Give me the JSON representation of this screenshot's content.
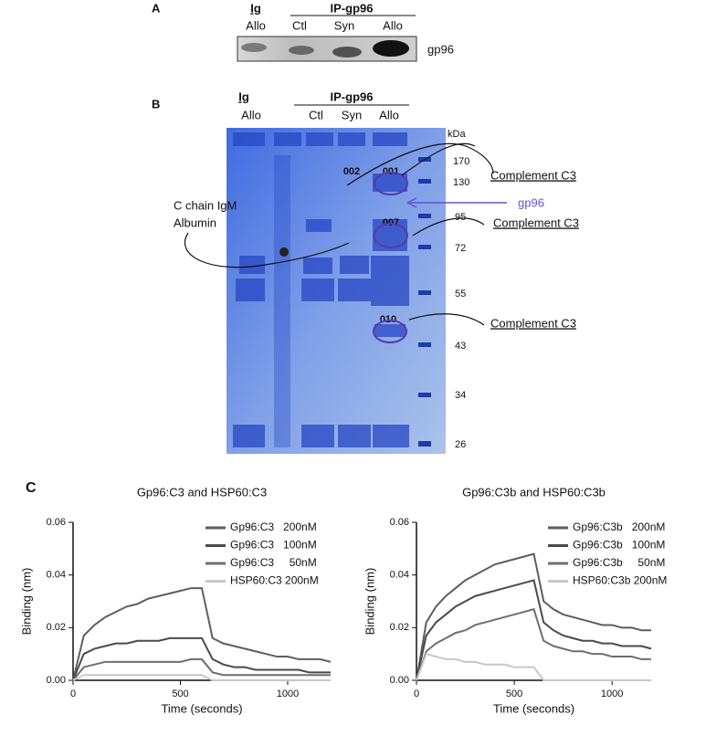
{
  "panel_a": {
    "label": "A",
    "ig": "Ig",
    "ip": "IP-gp96",
    "lanes": [
      "Allo",
      "Ctl",
      "Syn",
      "Allo"
    ],
    "band": "gp96"
  },
  "panel_b": {
    "label": "B",
    "ig": "Ig",
    "ip": "IP-gp96",
    "lanes": [
      "Allo",
      "Ctl",
      "Syn",
      "Allo"
    ],
    "unit": "kDa",
    "markers": [
      170,
      130,
      95,
      72,
      55,
      43,
      34,
      26
    ],
    "spots": [
      "002",
      "001",
      "007",
      "010"
    ],
    "annotations": [
      "Complement C3",
      "Complement C3",
      "Complement C3",
      "gp96",
      "C chain IgM",
      "Albumin"
    ]
  },
  "panel_c_label": "C",
  "chart_data": [
    {
      "type": "line",
      "title": "Gp96:C3 and HSP60:C3",
      "x_label": "Time (seconds)",
      "y_label": "Binding (nm)",
      "x": [
        0,
        50,
        100,
        150,
        200,
        250,
        300,
        350,
        400,
        450,
        500,
        550,
        600,
        650,
        700,
        750,
        800,
        850,
        900,
        950,
        1000,
        1050,
        1100,
        1150,
        1200
      ],
      "xlim": [
        0,
        1200
      ],
      "xticks": [
        0,
        500,
        1000
      ],
      "ylim": [
        0,
        0.06
      ],
      "yticks": [
        {
          "value": 0,
          "label": "0.00"
        },
        0.02,
        0.04,
        0.06
      ],
      "legend": "upper right",
      "series": [
        {
          "name": "Gp96:C3   200nM",
          "color": "#5e5e5e",
          "values": [
            0,
            0.017,
            0.021,
            0.024,
            0.026,
            0.028,
            0.029,
            0.031,
            0.032,
            0.033,
            0.034,
            0.035,
            0.035,
            0.016,
            0.014,
            0.013,
            0.012,
            0.011,
            0.01,
            0.009,
            0.009,
            0.008,
            0.008,
            0.008,
            0.007
          ]
        },
        {
          "name": "Gp96:C3   100nM",
          "color": "#4a4a4a",
          "values": [
            0,
            0.01,
            0.012,
            0.013,
            0.014,
            0.014,
            0.015,
            0.015,
            0.015,
            0.016,
            0.016,
            0.016,
            0.016,
            0.008,
            0.006,
            0.005,
            0.005,
            0.004,
            0.004,
            0.004,
            0.004,
            0.004,
            0.003,
            0.003,
            0.003
          ]
        },
        {
          "name": "Gp96:C3     50nM",
          "color": "#6e6e6e",
          "values": [
            0,
            0.005,
            0.006,
            0.007,
            0.007,
            0.007,
            0.007,
            0.007,
            0.007,
            0.007,
            0.007,
            0.008,
            0.008,
            0.003,
            0.002,
            0.002,
            0.002,
            0.002,
            0.002,
            0.002,
            0.002,
            0.002,
            0.002,
            0.002,
            0.002
          ]
        },
        {
          "name": "HSP60:C3 200nM",
          "color": "#c8c8c8",
          "values": [
            0,
            0.002,
            0.002,
            0.002,
            0.002,
            0.002,
            0.002,
            0.002,
            0.002,
            0.002,
            0.002,
            0.002,
            0.002,
            0,
            0,
            0,
            0,
            0,
            0,
            0,
            0,
            0,
            0,
            0,
            0
          ]
        }
      ]
    },
    {
      "type": "line",
      "title": "Gp96:C3b and HSP60:C3b",
      "x_label": "Time (seconds)",
      "y_label": "Binding (nm)",
      "x": [
        0,
        50,
        100,
        150,
        200,
        250,
        300,
        350,
        400,
        450,
        500,
        550,
        600,
        650,
        700,
        750,
        800,
        850,
        900,
        950,
        1000,
        1050,
        1100,
        1150,
        1200
      ],
      "xlim": [
        0,
        1200
      ],
      "xticks": [
        0,
        500,
        1000
      ],
      "ylim": [
        0,
        0.06
      ],
      "yticks": [
        {
          "value": 0,
          "label": "0.00"
        },
        0.02,
        0.04,
        0.06
      ],
      "legend": "upper right",
      "series": [
        {
          "name": "Gp96:C3b   200nM",
          "color": "#5e5e5e",
          "values": [
            0,
            0.022,
            0.028,
            0.032,
            0.035,
            0.038,
            0.04,
            0.042,
            0.044,
            0.045,
            0.046,
            0.047,
            0.048,
            0.03,
            0.027,
            0.025,
            0.024,
            0.023,
            0.022,
            0.021,
            0.021,
            0.02,
            0.02,
            0.019,
            0.019
          ]
        },
        {
          "name": "Gp96:C3b   100nM",
          "color": "#4a4a4a",
          "values": [
            0,
            0.017,
            0.022,
            0.025,
            0.028,
            0.03,
            0.032,
            0.033,
            0.034,
            0.035,
            0.036,
            0.037,
            0.038,
            0.022,
            0.019,
            0.017,
            0.016,
            0.015,
            0.015,
            0.014,
            0.014,
            0.013,
            0.013,
            0.013,
            0.012
          ]
        },
        {
          "name": "Gp96:C3b     50nM",
          "color": "#6e6e6e",
          "values": [
            0,
            0.011,
            0.014,
            0.016,
            0.018,
            0.019,
            0.021,
            0.022,
            0.023,
            0.024,
            0.025,
            0.026,
            0.027,
            0.015,
            0.013,
            0.012,
            0.011,
            0.011,
            0.01,
            0.01,
            0.009,
            0.009,
            0.009,
            0.008,
            0.008
          ]
        },
        {
          "name": "HSP60:C3b 200nM",
          "color": "#c8c8c8",
          "values": [
            0,
            0.01,
            0.009,
            0.008,
            0.008,
            0.007,
            0.007,
            0.006,
            0.006,
            0.006,
            0.005,
            0.005,
            0.005,
            0,
            0,
            0,
            0,
            0,
            0,
            0,
            0,
            0,
            0,
            0,
            0
          ]
        }
      ]
    }
  ]
}
